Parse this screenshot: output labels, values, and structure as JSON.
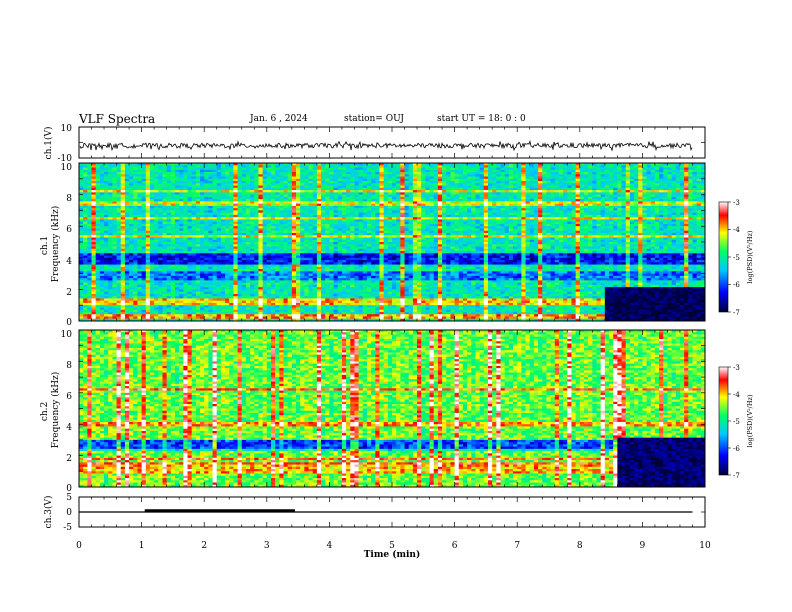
{
  "header": {
    "title": "VLF Spectra",
    "date": "Jan. 6 , 2024",
    "station": "station= OUJ",
    "start": "start  UT =   18: 0  : 0"
  },
  "chart_data": [
    {
      "type": "line",
      "id": "ch1_waveform",
      "ylabel": "ch.1(V)",
      "ylim": [
        -10,
        10
      ],
      "y_ticks": [
        "10",
        "-10"
      ],
      "x_range_min": [
        0,
        10
      ],
      "approx_level_v": -2,
      "approx_amplitude_v": 1.5,
      "color": "#000000"
    },
    {
      "type": "heatmap",
      "id": "ch1_spectrogram",
      "ylabel": "ch.1\nFrequency (kHz)",
      "ylim": [
        0,
        10
      ],
      "y_ticks": [
        "0",
        "2",
        "4",
        "6",
        "8",
        "10"
      ],
      "xlim": [
        0,
        10
      ],
      "colorbar": {
        "label": "log(PSD)(V²/Hz)",
        "range": [
          -7,
          -3
        ],
        "ticks": [
          "-3",
          "-4",
          "-5",
          "-6",
          "-7"
        ],
        "colors": [
          "#00003a",
          "#0000ff",
          "#00c8ff",
          "#00ff64",
          "#ffff00",
          "#ff0000",
          "#ffffff"
        ]
      },
      "background_level": -5.3,
      "bands_khz": [
        {
          "f0": 3.6,
          "f1": 4.3,
          "level": -6.4
        },
        {
          "f0": 2.6,
          "f1": 3.1,
          "level": -6.0
        },
        {
          "f0": 1.0,
          "f1": 1.5,
          "level": -4.2
        },
        {
          "f0": 0.2,
          "f1": 0.5,
          "level": -4.0
        }
      ],
      "late_dark_region": {
        "t_start_min": 8.4,
        "f_max_khz": 2.2,
        "level": -6.9
      }
    },
    {
      "type": "heatmap",
      "id": "ch2_spectrogram",
      "ylabel": "ch.2\nFrequency (kHz)",
      "ylim": [
        0,
        10
      ],
      "y_ticks": [
        "0",
        "2",
        "4",
        "6",
        "8",
        "10"
      ],
      "xlim": [
        0,
        10
      ],
      "colorbar": {
        "label": "log(PSD)(V²/Hz)",
        "range": [
          -7,
          -3
        ],
        "ticks": [
          "-3",
          "-4",
          "-5",
          "-6",
          "-7"
        ],
        "colors": [
          "#00003a",
          "#0000ff",
          "#00c8ff",
          "#00ff64",
          "#ffff00",
          "#ff0000",
          "#ffffff"
        ]
      },
      "background_level": -4.7,
      "bands_khz": [
        {
          "f0": 3.9,
          "f1": 4.2,
          "level": -4.0
        },
        {
          "f0": 2.3,
          "f1": 3.0,
          "level": -6.2
        },
        {
          "f0": 0.8,
          "f1": 1.4,
          "level": -4.1
        }
      ],
      "late_dark_region": {
        "t_start_min": 8.6,
        "f_max_khz": 3.2,
        "level": -6.8
      }
    },
    {
      "type": "line",
      "id": "ch3_waveform",
      "ylabel": "ch.3(V)",
      "ylim": [
        -5,
        5
      ],
      "y_ticks": [
        "5",
        "0",
        "-5"
      ],
      "baseline_v": 0,
      "segments": [
        {
          "t0_min": 0.0,
          "t1_min": 9.8,
          "value_v": 0
        },
        {
          "t0_min": 1.05,
          "t1_min": 3.45,
          "value_v": 0.4
        }
      ],
      "xlabel": "Time (min)",
      "xlim": [
        0,
        10
      ],
      "x_ticks": [
        "0",
        "1",
        "2",
        "3",
        "4",
        "5",
        "6",
        "7",
        "8",
        "9",
        "10"
      ]
    }
  ]
}
